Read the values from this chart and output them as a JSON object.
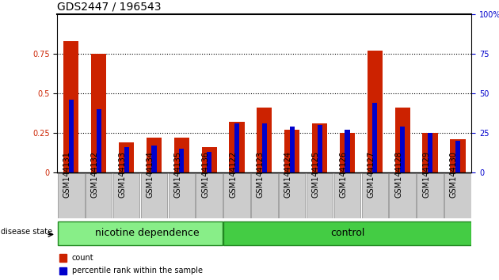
{
  "title": "GDS2447 / 196543",
  "samples": [
    "GSM144131",
    "GSM144132",
    "GSM144133",
    "GSM144134",
    "GSM144135",
    "GSM144136",
    "GSM144122",
    "GSM144123",
    "GSM144124",
    "GSM144125",
    "GSM144126",
    "GSM144127",
    "GSM144128",
    "GSM144129",
    "GSM144130"
  ],
  "count_values": [
    0.83,
    0.75,
    0.19,
    0.22,
    0.22,
    0.16,
    0.32,
    0.41,
    0.27,
    0.31,
    0.25,
    0.77,
    0.41,
    0.25,
    0.21
  ],
  "percentile_values": [
    0.46,
    0.4,
    0.16,
    0.17,
    0.15,
    0.13,
    0.31,
    0.31,
    0.29,
    0.3,
    0.27,
    0.44,
    0.29,
    0.25,
    0.2
  ],
  "bar_color": "#cc2200",
  "percentile_color": "#0000cc",
  "group1_label": "nicotine dependence",
  "group2_label": "control",
  "group1_count": 6,
  "group2_count": 9,
  "group1_color": "#88ee88",
  "group2_color": "#44cc44",
  "disease_state_label": "disease state",
  "legend_count_label": "count",
  "legend_percentile_label": "percentile rank within the sample",
  "ylim": [
    0,
    1.0
  ],
  "yticks_left": [
    0,
    0.25,
    0.5,
    0.75
  ],
  "yticks_right": [
    0,
    25,
    50,
    75,
    100
  ],
  "grid_lines": [
    0.25,
    0.5,
    0.75
  ],
  "bar_width": 0.55,
  "tick_label_fontsize": 7,
  "title_fontsize": 10,
  "group_label_fontsize": 9
}
